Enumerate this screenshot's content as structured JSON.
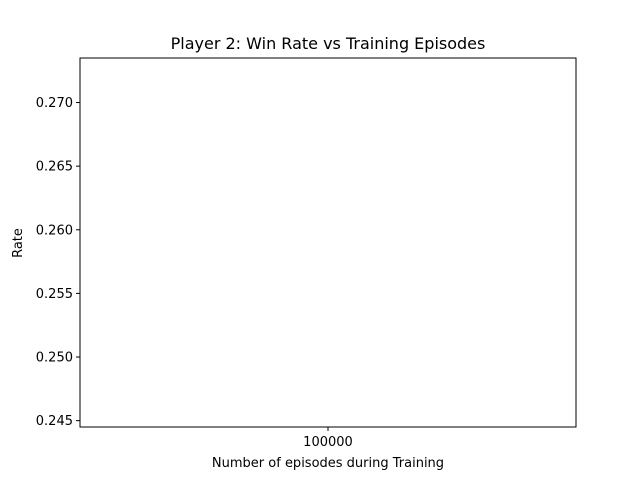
{
  "chart_data": {
    "type": "line",
    "title": "Player 2: Win Rate vs Training Episodes",
    "xlabel": "Number of episodes during Training",
    "ylabel": "Rate",
    "x": [
      100000
    ],
    "xtick_labels": [
      "100000"
    ],
    "ytick_values": [
      0.245,
      0.25,
      0.255,
      0.26,
      0.265,
      0.27
    ],
    "ytick_labels": [
      "0.245",
      "0.250",
      "0.255",
      "0.260",
      "0.265",
      "0.270"
    ],
    "ylim": [
      0.2445,
      0.2735
    ],
    "series": [],
    "grid": false,
    "legend": "none"
  }
}
